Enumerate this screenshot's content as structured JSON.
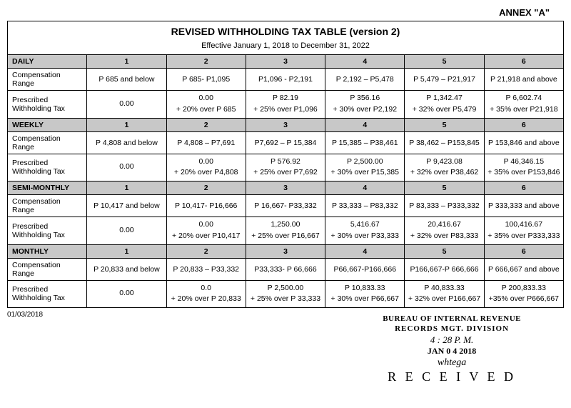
{
  "annex": "ANNEX \"A\"",
  "title": "REVISED WITHHOLDING TAX TABLE (version 2)",
  "subtitle": "Effective January 1, 2018 to December 31, 2022",
  "columns": [
    "1",
    "2",
    "3",
    "4",
    "5",
    "6"
  ],
  "row_labels": {
    "comp": "Compensation Range",
    "tax": "Prescribed Withholding Tax"
  },
  "sections": [
    {
      "name": "DAILY",
      "comp": [
        "P 685 and below",
        "P 685- P1,095",
        "P1,096 - P2,191",
        "P 2,192 – P5,478",
        "P 5,479 – P21,917",
        "P 21,918 and above"
      ],
      "taxA": [
        "0.00",
        "0.00",
        "P 82.19",
        "P 356.16",
        "P 1,342.47",
        "P 6,602.74"
      ],
      "taxB": [
        "",
        "+ 20% over P 685",
        "+ 25% over P1,096",
        "+ 30% over P2,192",
        "+ 32% over P5,479",
        "+ 35% over P21,918"
      ]
    },
    {
      "name": "WEEKLY",
      "comp": [
        "P 4,808 and below",
        "P 4,808 – P7,691",
        "P7,692 – P 15,384",
        "P 15,385 – P38,461",
        "P 38,462 – P153,845",
        "P 153,846 and above"
      ],
      "taxA": [
        "0.00",
        "0.00",
        "P 576.92",
        "P 2,500.00",
        "P 9,423.08",
        "P 46,346.15"
      ],
      "taxB": [
        "",
        "+ 20% over  P4,808",
        "+ 25% over P7,692",
        "+ 30% over P15,385",
        "+ 32% over P38,462",
        "+ 35% over P153,846"
      ]
    },
    {
      "name": "SEMI-MONTHLY",
      "comp": [
        "P 10,417 and below",
        "P 10,417- P16,666",
        "P 16,667- P33,332",
        "P 33,333 – P83,332",
        "P 83,333 – P333,332",
        "P 333,333 and above"
      ],
      "taxA": [
        "0.00",
        "0.00",
        "1,250.00",
        "5,416.67",
        "20,416.67",
        "100,416.67"
      ],
      "taxB": [
        "",
        "+ 20% over P10,417",
        "+ 25% over P16,667",
        "+ 30% over P33,333",
        "+ 32% over P83,333",
        "+ 35% over P333,333"
      ]
    },
    {
      "name": "MONTHLY",
      "comp": [
        "P 20,833 and below",
        "P 20,833 – P33,332",
        "P33,333- P 66,666",
        "P66,667-P166,666",
        "P166,667-P 666,666",
        "P 666,667 and above"
      ],
      "taxA": [
        "0.00",
        "0.0",
        "P 2,500.00",
        "P 10,833.33",
        "P 40,833.33",
        "P 200,833.33"
      ],
      "taxB": [
        "",
        "+ 20% over P 20,833",
        "+ 25% over P 33,333",
        "+ 30% over P66,667",
        "+ 32% over P166,667",
        "+35% over P666,667"
      ]
    }
  ],
  "footer_date": "01/03/2018",
  "stamp": {
    "l1": "BUREAU OF INTERNAL REVENUE",
    "l2": "RECORDS MGT. DIVISION",
    "time": "4 : 28  P. M.",
    "date": "JAN 0 4 2018",
    "sig": "whtega",
    "received": "R E C E I V E D"
  },
  "colors": {
    "header_bg": "#c8c8c8",
    "border": "#000000",
    "text": "#000000",
    "background": "#ffffff"
  }
}
